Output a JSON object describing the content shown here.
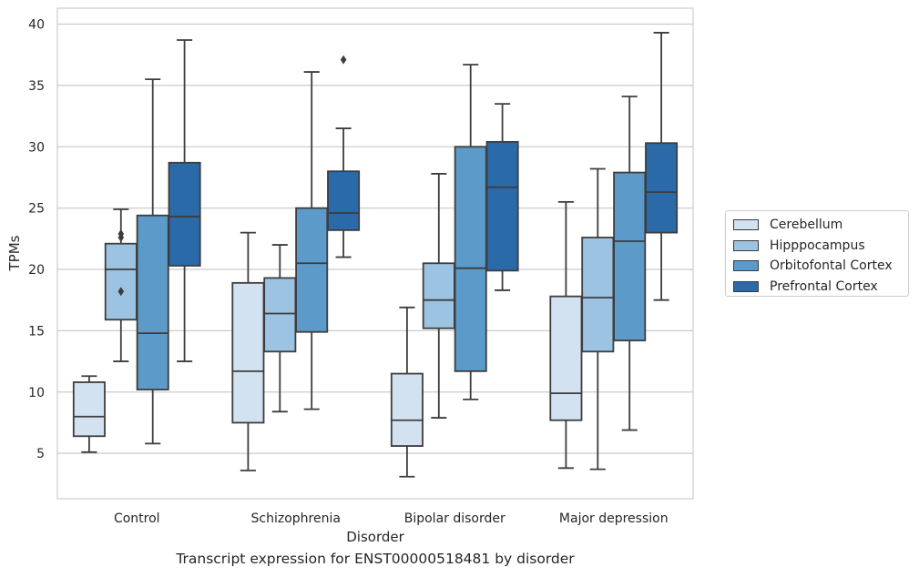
{
  "caption": "Transcript expression for ENST00000518481 by disorder",
  "chart_data": {
    "type": "boxplot",
    "xlabel": "Disorder",
    "ylabel": "TPMs",
    "ylim": [
      1.3,
      41.3
    ],
    "yticks": [
      5,
      10,
      15,
      20,
      25,
      30,
      35,
      40
    ],
    "grid": "horizontal",
    "legend_position": "right",
    "categories": [
      "Control",
      "Schizophrenia",
      "Bipolar disorder",
      "Major depression"
    ],
    "series": [
      {
        "name": "Cerebellum",
        "color": "#d3e2f1",
        "boxes": [
          {
            "whislo": 5.1,
            "q1": 6.4,
            "med": 8.0,
            "q3": 10.8,
            "whishi": 11.3,
            "fliers": []
          },
          {
            "whislo": 3.6,
            "q1": 7.5,
            "med": 11.7,
            "q3": 18.9,
            "whishi": 23.0,
            "fliers": []
          },
          {
            "whislo": 3.1,
            "q1": 5.6,
            "med": 7.7,
            "q3": 11.5,
            "whishi": 16.9,
            "fliers": []
          },
          {
            "whislo": 3.8,
            "q1": 7.7,
            "med": 9.9,
            "q3": 17.8,
            "whishi": 25.5,
            "fliers": []
          }
        ]
      },
      {
        "name": "Hipppocampus",
        "color": "#9dc3e2",
        "boxes": [
          {
            "whislo": 12.5,
            "q1": 15.9,
            "med": 20.0,
            "q3": 22.1,
            "whishi": 24.9,
            "fliers": [
              18.2,
              22.6,
              22.9
            ]
          },
          {
            "whislo": 8.4,
            "q1": 13.3,
            "med": 16.4,
            "q3": 19.3,
            "whishi": 22.0,
            "fliers": []
          },
          {
            "whislo": 7.9,
            "q1": 15.2,
            "med": 17.5,
            "q3": 20.5,
            "whishi": 27.8,
            "fliers": []
          },
          {
            "whislo": 3.7,
            "q1": 13.3,
            "med": 17.7,
            "q3": 22.6,
            "whishi": 28.2,
            "fliers": []
          }
        ]
      },
      {
        "name": "Orbitofontal Cortex",
        "color": "#5b9ac9",
        "boxes": [
          {
            "whislo": 5.8,
            "q1": 10.2,
            "med": 14.8,
            "q3": 24.4,
            "whishi": 35.5,
            "fliers": []
          },
          {
            "whislo": 8.6,
            "q1": 14.9,
            "med": 20.5,
            "q3": 25.0,
            "whishi": 36.1,
            "fliers": []
          },
          {
            "whislo": 9.4,
            "q1": 11.7,
            "med": 20.1,
            "q3": 30.0,
            "whishi": 36.7,
            "fliers": []
          },
          {
            "whislo": 6.9,
            "q1": 14.2,
            "med": 22.3,
            "q3": 27.9,
            "whishi": 34.1,
            "fliers": []
          }
        ]
      },
      {
        "name": "Prefrontal Cortex",
        "color": "#2b6aa9",
        "boxes": [
          {
            "whislo": 12.5,
            "q1": 20.3,
            "med": 24.3,
            "q3": 28.7,
            "whishi": 38.7,
            "fliers": []
          },
          {
            "whislo": 21.0,
            "q1": 23.2,
            "med": 24.6,
            "q3": 28.0,
            "whishi": 31.5,
            "fliers": [
              37.1
            ]
          },
          {
            "whislo": 18.3,
            "q1": 19.9,
            "med": 26.7,
            "q3": 30.4,
            "whishi": 33.5,
            "fliers": []
          },
          {
            "whislo": 17.5,
            "q1": 23.0,
            "med": 26.3,
            "q3": 30.3,
            "whishi": 39.3,
            "fliers": []
          }
        ]
      }
    ]
  }
}
